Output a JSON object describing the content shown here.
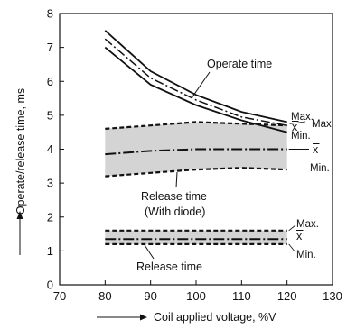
{
  "chart_data": {
    "type": "line",
    "xlabel": "Coil applied voltage, %V",
    "ylabel": "Operate/release time, ms",
    "xlim": [
      70,
      130
    ],
    "ylim": [
      0,
      8
    ],
    "xticks": [
      "70",
      "80",
      "90",
      "100",
      "110",
      "120",
      "130"
    ],
    "yticks": [
      "0",
      "1",
      "2",
      "3",
      "4",
      "5",
      "6",
      "7",
      "8"
    ],
    "grid": false,
    "x": [
      80,
      90,
      100,
      110,
      120
    ],
    "groups": [
      {
        "label": "Operate time",
        "max": [
          7.5,
          6.3,
          5.6,
          5.1,
          4.8
        ],
        "mean": [
          7.25,
          6.1,
          5.45,
          4.95,
          4.7
        ],
        "min": [
          7.0,
          5.9,
          5.3,
          4.85,
          4.5
        ]
      },
      {
        "label": "Release time (With diode)",
        "label_line1": "Release time",
        "label_line2": "(With diode)",
        "max": [
          4.6,
          4.7,
          4.8,
          4.75,
          4.7
        ],
        "mean": [
          3.85,
          3.95,
          4.0,
          4.0,
          4.0
        ],
        "min": [
          3.2,
          3.3,
          3.4,
          3.45,
          3.4
        ]
      },
      {
        "label": "Release time",
        "max": [
          1.6,
          1.6,
          1.6,
          1.6,
          1.6
        ],
        "mean": [
          1.35,
          1.35,
          1.35,
          1.35,
          1.35
        ],
        "min": [
          1.2,
          1.2,
          1.2,
          1.2,
          1.2
        ]
      }
    ],
    "legend_labels": {
      "max": "Max.",
      "mean": "x",
      "min": "Min."
    }
  }
}
